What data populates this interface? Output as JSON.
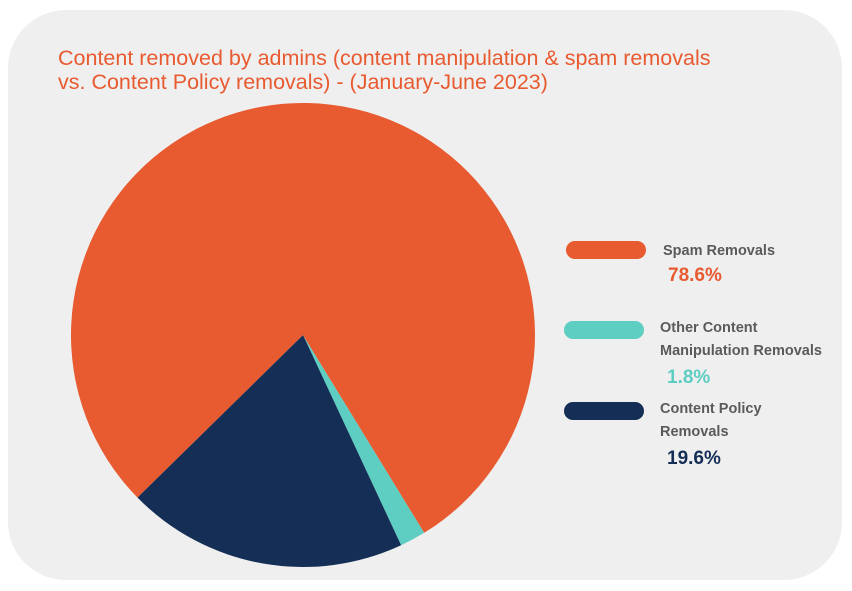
{
  "chart_data": {
    "type": "pie",
    "title_lines": [
      "Content removed by admins (content manipulation & spam removals",
      "vs. Content Policy removals) -  (January-June 2023)"
    ],
    "slices": [
      {
        "label_lines": [
          "Spam Removals"
        ],
        "value": 78.6,
        "value_text": "78.6%",
        "color": "#e85a2f"
      },
      {
        "label_lines": [
          "Other Content",
          "Manipulation Removals"
        ],
        "value": 1.8,
        "value_text": "1.8%",
        "color": "#5ecdc2"
      },
      {
        "label_lines": [
          "Content Policy",
          "Removals"
        ],
        "value": 19.6,
        "value_text": "19.6%",
        "color": "#142e56"
      }
    ],
    "legend_position": "right"
  }
}
